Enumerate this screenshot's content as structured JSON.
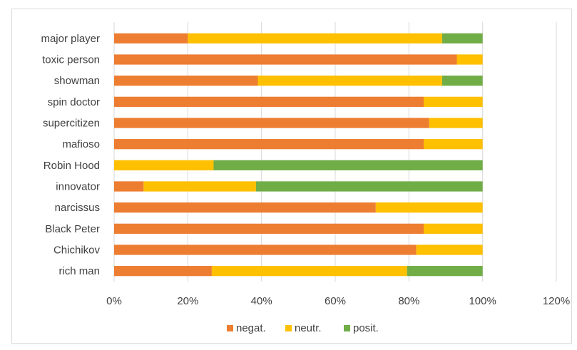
{
  "chart_data": {
    "type": "bar",
    "orientation": "horizontal",
    "stacked": true,
    "categories": [
      "major player",
      "toxic person",
      "showman",
      "spin doctor",
      "supercitizen",
      "mafioso",
      "Robin Hood",
      "innovator",
      "narcissus",
      "Black Peter",
      "Chichikov",
      "rich man"
    ],
    "series": [
      {
        "name": "negat.",
        "color": "#ED7D31",
        "values": [
          20,
          93,
          39,
          84,
          85.5,
          84,
          0,
          8,
          71,
          84,
          82,
          26.5
        ]
      },
      {
        "name": "neutr.",
        "color": "#FFC000",
        "values": [
          69,
          7,
          50,
          16,
          14.5,
          16,
          27,
          30.5,
          29,
          16,
          18,
          53
        ]
      },
      {
        "name": "posit.",
        "color": "#70AD47",
        "values": [
          11,
          0,
          11,
          0,
          0,
          0,
          73,
          61.5,
          0,
          0,
          0,
          20.5
        ]
      }
    ],
    "xlim": [
      0,
      120
    ],
    "xticks": [
      "0%",
      "20%",
      "40%",
      "60%",
      "80%",
      "100%",
      "120%"
    ],
    "grid": true,
    "legend_position": "bottom"
  }
}
